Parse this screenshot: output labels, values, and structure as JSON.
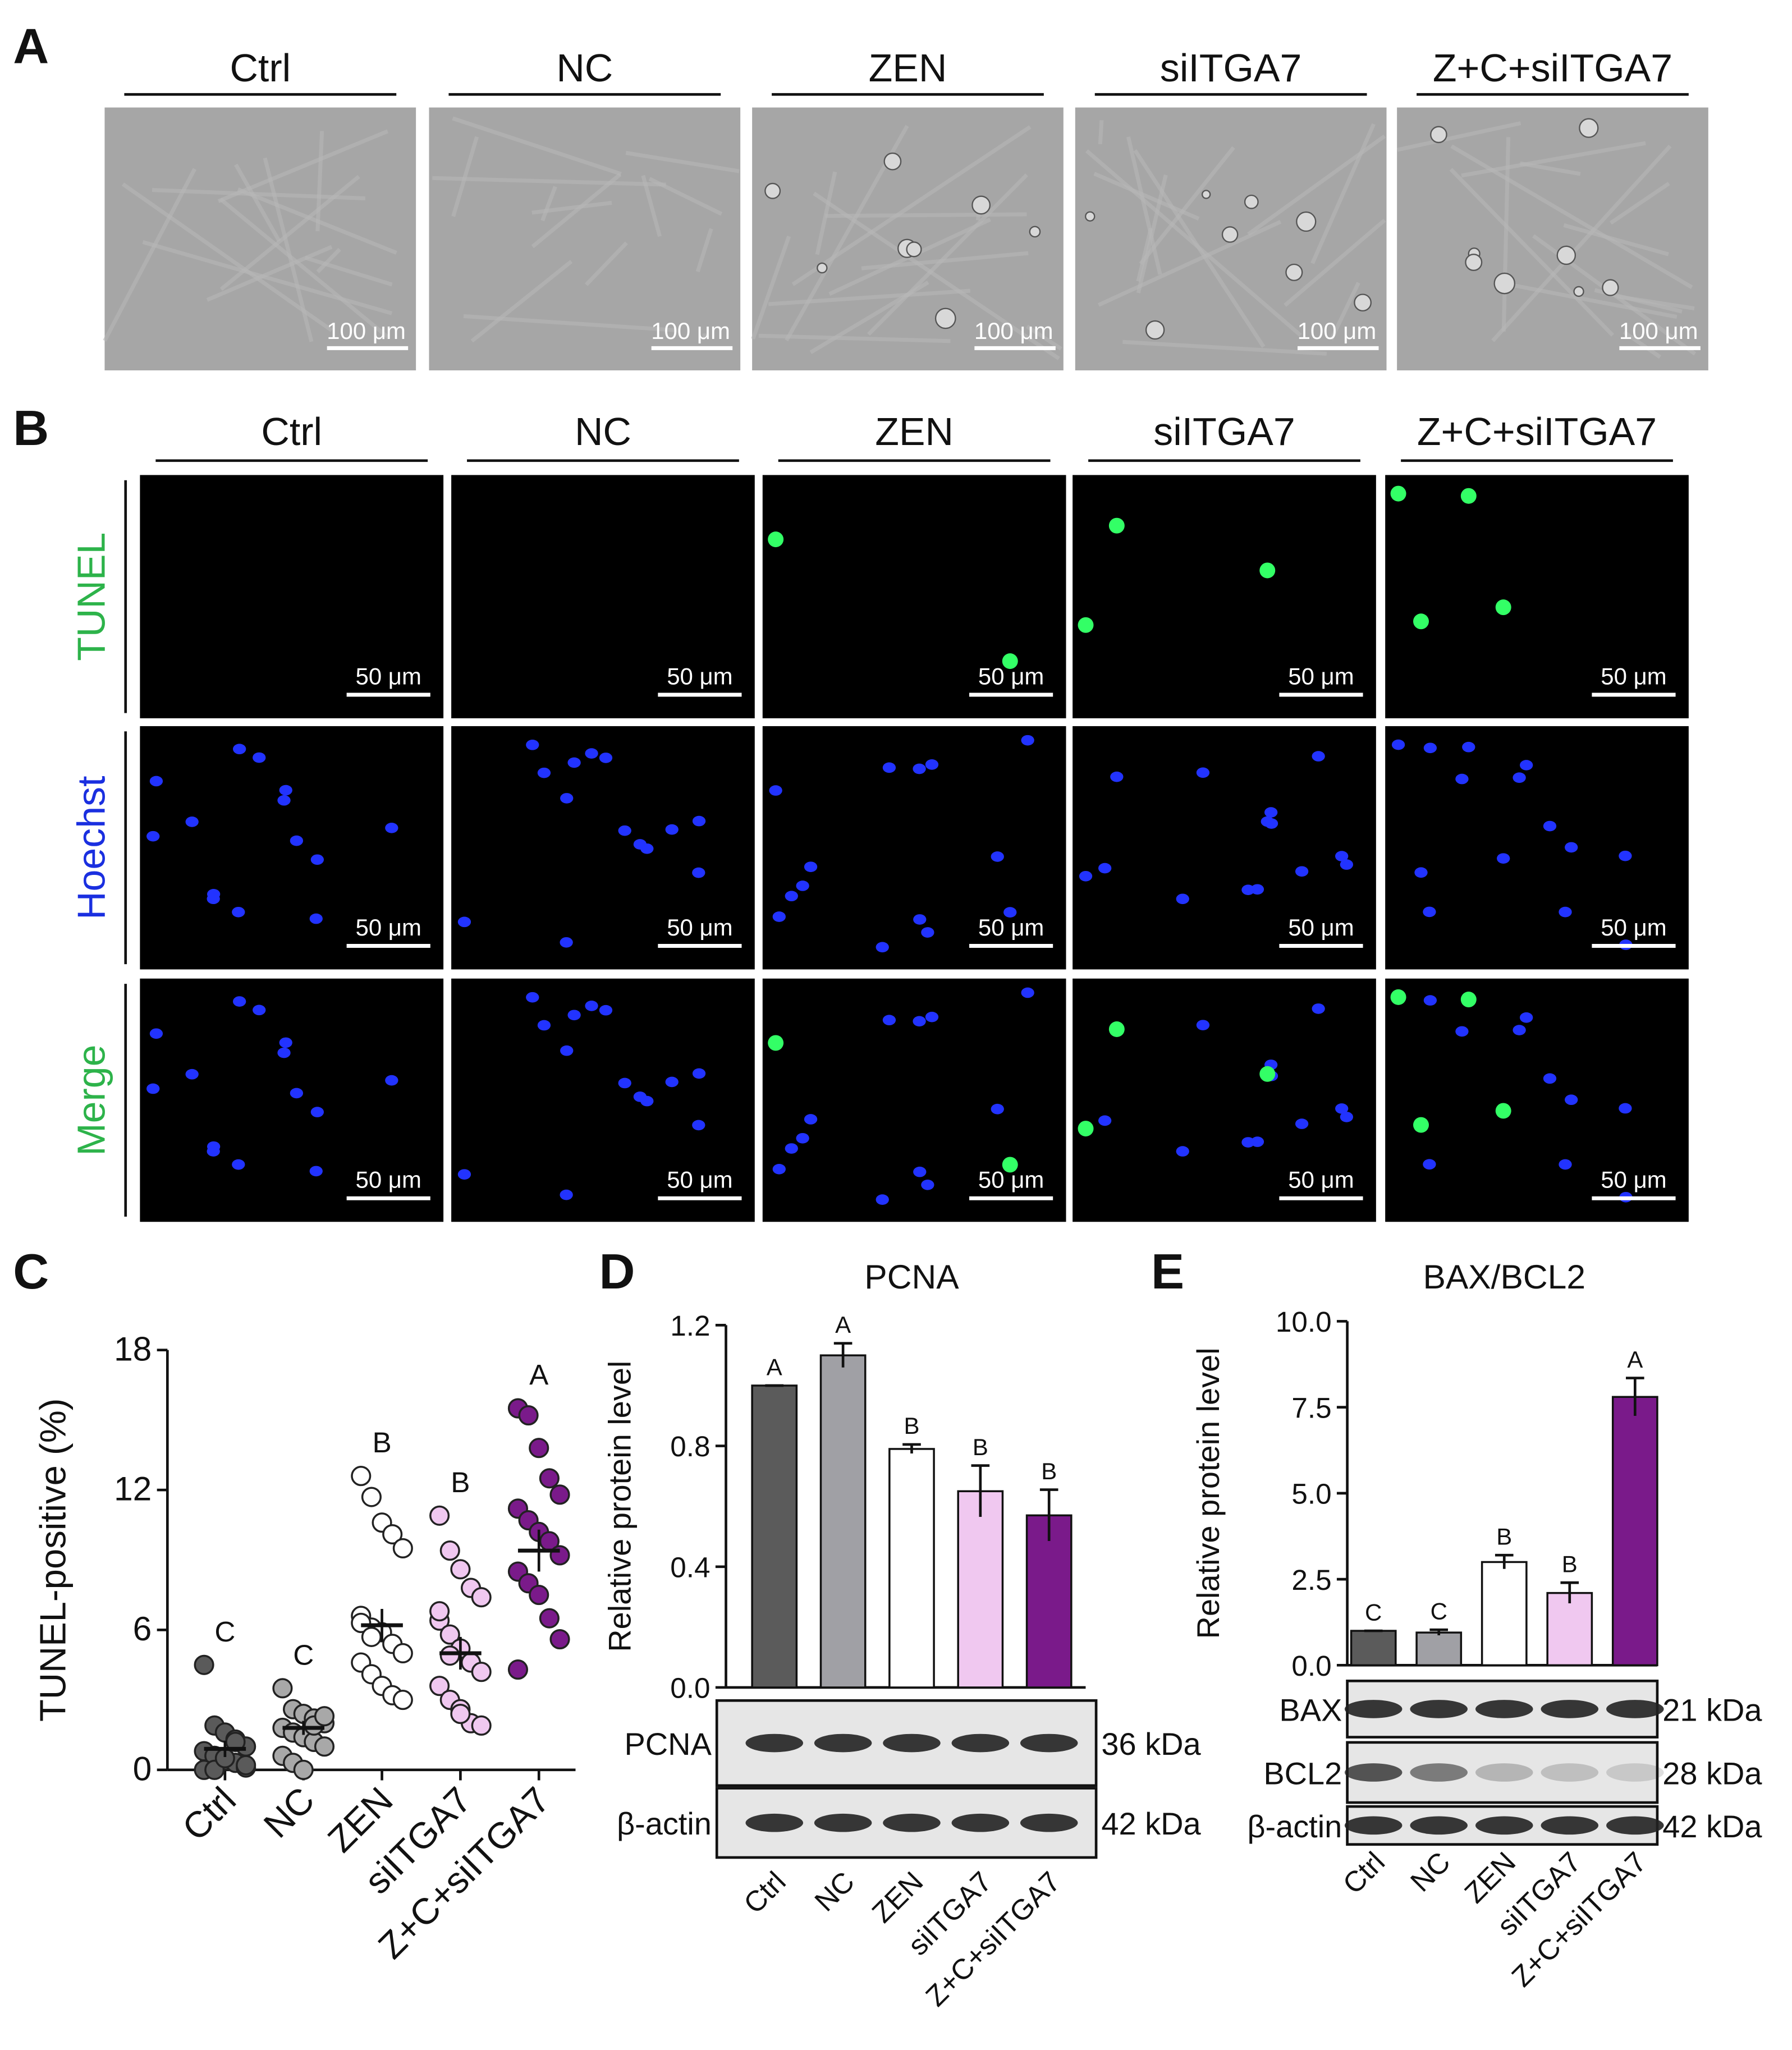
{
  "panels": {
    "A": {
      "label": "A",
      "columns": [
        "Ctrl",
        "NC",
        "ZEN",
        "siITGA7",
        "Z+C+siITGA7"
      ],
      "scale_bar": "100 μm"
    },
    "B": {
      "label": "B",
      "columns": [
        "Ctrl",
        "NC",
        "ZEN",
        "siITGA7",
        "Z+C+siITGA7"
      ],
      "rows": [
        "TUNEL",
        "Hoechst",
        "Merge"
      ],
      "scale_bar": "50 μm"
    }
  },
  "chart_data": [
    {
      "panel_label": "C",
      "type": "dot",
      "ylabel": "TUNEL-positive (%)",
      "categories": [
        "Ctrl",
        "NC",
        "ZEN",
        "siITGA7",
        "Z+C+siITGA7"
      ],
      "colors": [
        "#5a5a5a",
        "#a8a8a8",
        "#ffffff",
        "#f0c8f0",
        "#7a1a8a"
      ],
      "groups": [
        [
          4.5,
          1.9,
          1.6,
          1.3,
          1.0,
          0.8,
          0.6,
          0.4,
          0.3,
          0.1,
          0,
          0,
          0.5,
          1.2,
          0.2
        ],
        [
          3.5,
          2.6,
          2.4,
          2.2,
          2.0,
          1.8,
          1.6,
          1.4,
          1.2,
          1.0,
          0.6,
          0.3,
          0,
          1.9,
          2.3
        ],
        [
          12.6,
          11.7,
          10.6,
          10.1,
          9.5,
          6.6,
          6.1,
          5.9,
          5.4,
          5.0,
          4.6,
          4.1,
          3.6,
          3.2,
          3.0,
          6.3,
          5.7
        ],
        [
          10.9,
          9.4,
          8.6,
          7.8,
          7.4,
          6.4,
          5.8,
          5.2,
          4.6,
          4.2,
          3.6,
          3.0,
          2.6,
          2.0,
          1.9,
          6.8,
          4.9,
          2.4
        ],
        [
          15.5,
          15.2,
          13.8,
          12.5,
          11.8,
          11.2,
          10.7,
          10.2,
          9.8,
          9.2,
          8.5,
          8.0,
          7.5,
          6.5,
          5.6,
          4.3
        ]
      ],
      "means": [
        0.9,
        1.8,
        6.2,
        5.0,
        9.4
      ],
      "errors": [
        0.35,
        0.3,
        0.7,
        0.7,
        0.9
      ],
      "letters": [
        "C",
        "C",
        "B",
        "B",
        "A"
      ],
      "ylim": [
        0,
        18
      ],
      "yticks": [
        0,
        6,
        12,
        18
      ]
    },
    {
      "panel_label": "D",
      "type": "bar",
      "title": "PCNA",
      "ylabel": "Relative protein level",
      "categories": [
        "Ctrl",
        "NC",
        "ZEN",
        "siITGA7",
        "Z+C+siITGA7"
      ],
      "values": [
        1.0,
        1.1,
        0.79,
        0.65,
        0.57
      ],
      "errors": [
        0,
        0.04,
        0.015,
        0.085,
        0.085
      ],
      "letters": [
        "A",
        "A",
        "B",
        "B",
        "B"
      ],
      "colors": [
        "#5b5b5b",
        "#a0a0a5",
        "#ffffff",
        "#f0c8f0",
        "#7a1a8a"
      ],
      "ylim": [
        0,
        1.2
      ],
      "yticks": [
        {
          "value": 0,
          "label": "0.0"
        },
        0.4,
        0.8,
        1.2
      ],
      "blots": [
        {
          "name": "PCNA",
          "size": "36 kDa"
        },
        {
          "name": "β-actin",
          "size": "42 kDa"
        }
      ]
    },
    {
      "panel_label": "E",
      "type": "bar",
      "title": "BAX/BCL2",
      "ylabel": "Relative protein level",
      "categories": [
        "Ctrl",
        "NC",
        "ZEN",
        "siITGA7",
        "Z+C+siITGA7"
      ],
      "values": [
        1.0,
        0.95,
        3.0,
        2.1,
        7.8
      ],
      "errors": [
        0,
        0.08,
        0.2,
        0.3,
        0.55
      ],
      "letters": [
        "C",
        "C",
        "B",
        "B",
        "A"
      ],
      "colors": [
        "#5b5b5b",
        "#a0a0a5",
        "#ffffff",
        "#f0c8f0",
        "#7a1a8a"
      ],
      "ylim": [
        0,
        10
      ],
      "yticks": [
        {
          "value": 0,
          "label": "0.0"
        },
        {
          "value": 2.5,
          "label": "2.5"
        },
        {
          "value": 5,
          "label": "5.0"
        },
        {
          "value": 7.5,
          "label": "7.5"
        },
        {
          "value": 10,
          "label": "10.0"
        }
      ],
      "blots": [
        {
          "name": "BAX",
          "size": "21 kDa"
        },
        {
          "name": "BCL2",
          "size": "28 kDa"
        },
        {
          "name": "β-actin",
          "size": "42 kDa"
        }
      ]
    }
  ]
}
